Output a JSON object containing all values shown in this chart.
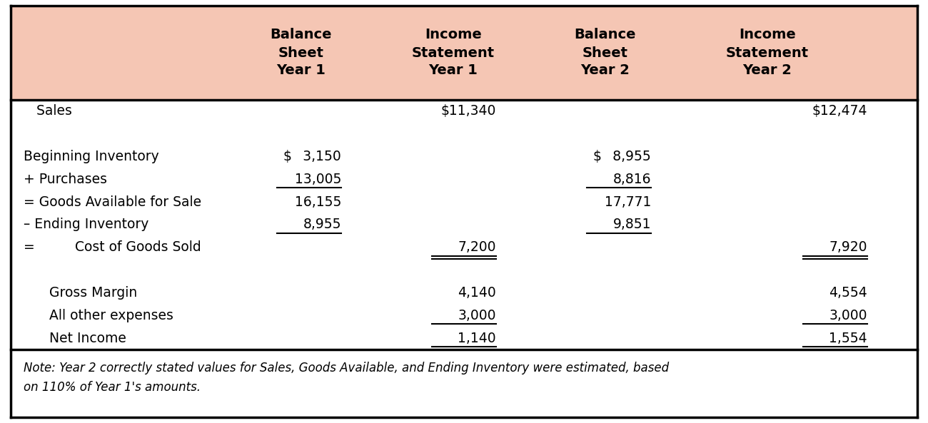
{
  "header_bg": "#F5C6B4",
  "body_bg": "#FFFFFF",
  "border_color": "#000000",
  "header_texts": [
    "Balance\nSheet\nYear 1",
    "Income\nStatement\nYear 1",
    "Balance\nSheet\nYear 2",
    "Income\nStatement\nYear 2"
  ],
  "rows": [
    {
      "label": "   Sales",
      "bold": false,
      "cols": [
        null,
        "$11,340",
        null,
        "$12,474"
      ],
      "ul": [],
      "dul": []
    },
    {
      "label": "",
      "bold": false,
      "cols": [
        null,
        null,
        null,
        null
      ],
      "ul": [],
      "dul": []
    },
    {
      "label": "Beginning Inventory",
      "bold": false,
      "cols": [
        "$  3,150",
        null,
        "$  8,955",
        null
      ],
      "ul": [],
      "dul": []
    },
    {
      "label": "+ Purchases",
      "bold": false,
      "cols": [
        "13,005",
        null,
        "8,816",
        null
      ],
      "ul": [
        0,
        2
      ],
      "dul": []
    },
    {
      "label": "= Goods Available for Sale",
      "bold": false,
      "cols": [
        "16,155",
        null,
        "17,771",
        null
      ],
      "ul": [],
      "dul": []
    },
    {
      "label": "– Ending Inventory",
      "bold": false,
      "cols": [
        "8,955",
        null,
        "9,851",
        null
      ],
      "ul": [
        0,
        2
      ],
      "dul": []
    },
    {
      "label": "=   Cost of Goods Sold",
      "bold": false,
      "cols": [
        null,
        "7,200",
        null,
        "7,920"
      ],
      "ul": [
        1,
        3
      ],
      "dul": [
        1,
        3
      ]
    },
    {
      "label": "",
      "bold": false,
      "cols": [
        null,
        null,
        null,
        null
      ],
      "ul": [],
      "dul": []
    },
    {
      "label": "      Gross Margin",
      "bold": false,
      "cols": [
        null,
        "4,140",
        null,
        "4,554"
      ],
      "ul": [],
      "dul": []
    },
    {
      "label": "      All other expenses",
      "bold": false,
      "cols": [
        null,
        "3,000",
        null,
        "3,000"
      ],
      "ul": [
        1,
        3
      ],
      "dul": []
    },
    {
      "label": "      Net Income",
      "bold": false,
      "cols": [
        null,
        "1,140",
        null,
        "1,554"
      ],
      "ul": [
        1,
        3
      ],
      "dul": [
        1,
        3
      ]
    }
  ],
  "note": "Note: Year 2 correctly stated values for Sales, Goods Available, and Ending Inventory were estimated, based\non 110% of Year 1's amounts.",
  "figsize": [
    13.0,
    5.93
  ],
  "dpi": 100
}
